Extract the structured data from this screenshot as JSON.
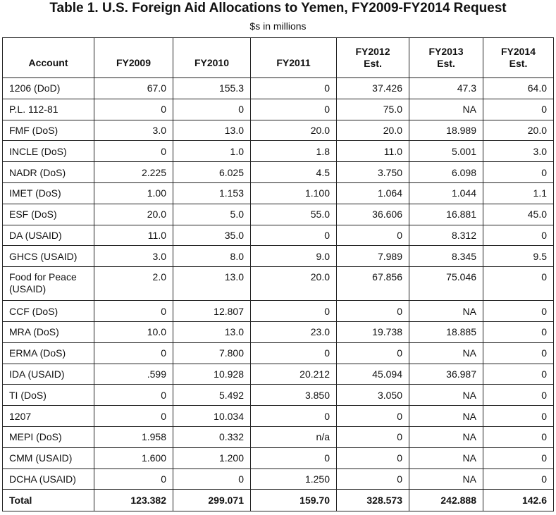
{
  "title": "Table 1. U.S. Foreign Aid Allocations to Yemen, FY2009-FY2014 Request",
  "subtitle": "$s in millions",
  "headers": [
    "Account",
    "FY2009",
    "FY2010",
    "FY2011",
    "FY2012\nEst.",
    "FY2013\nEst.",
    "FY2014\nEst."
  ],
  "rows": [
    [
      "1206 (DoD)",
      "67.0",
      "155.3",
      "0",
      "37.426",
      "47.3",
      "64.0"
    ],
    [
      "P.L. 112-81",
      "0",
      "0",
      "0",
      "75.0",
      "NA",
      "0"
    ],
    [
      "FMF (DoS)",
      "3.0",
      "13.0",
      "20.0",
      "20.0",
      "18.989",
      "20.0"
    ],
    [
      "INCLE (DoS)",
      "0",
      "1.0",
      "1.8",
      "11.0",
      "5.001",
      "3.0"
    ],
    [
      "NADR (DoS)",
      "2.225",
      "6.025",
      "4.5",
      "3.750",
      "6.098",
      "0"
    ],
    [
      "IMET (DoS)",
      "1.00",
      "1.153",
      "1.100",
      "1.064",
      "1.044",
      "1.1"
    ],
    [
      "ESF (DoS)",
      "20.0",
      "5.0",
      "55.0",
      "36.606",
      "16.881",
      "45.0"
    ],
    [
      "DA (USAID)",
      "11.0",
      "35.0",
      "0",
      "0",
      "8.312",
      "0"
    ],
    [
      "GHCS (USAID)",
      "3.0",
      "8.0",
      "9.0",
      "7.989",
      "8.345",
      "9.5"
    ],
    [
      "Food for Peace (USAID)",
      "2.0",
      "13.0",
      "20.0",
      "67.856",
      "75.046",
      "0"
    ],
    [
      "CCF (DoS)",
      "0",
      "12.807",
      "0",
      "0",
      "NA",
      "0"
    ],
    [
      "MRA (DoS)",
      "10.0",
      "13.0",
      "23.0",
      "19.738",
      "18.885",
      "0"
    ],
    [
      "ERMA (DoS)",
      "0",
      "7.800",
      "0",
      "0",
      "NA",
      "0"
    ],
    [
      "IDA (USAID)",
      ".599",
      "10.928",
      "20.212",
      "45.094",
      "36.987",
      "0"
    ],
    [
      "TI (DoS)",
      "0",
      "5.492",
      "3.850",
      "3.050",
      "NA",
      "0"
    ],
    [
      "1207",
      "0",
      "10.034",
      "0",
      "0",
      "NA",
      "0"
    ],
    [
      "MEPI (DoS)",
      "1.958",
      "0.332",
      "n/a",
      "0",
      "NA",
      "0"
    ],
    [
      "CMM (USAID)",
      "1.600",
      "1.200",
      "0",
      "0",
      "NA",
      "0"
    ],
    [
      "DCHA (USAID)",
      "0",
      "0",
      "1.250",
      "0",
      "NA",
      "0"
    ]
  ],
  "total": [
    "Total",
    "123.382",
    "299.071",
    "159.70",
    "328.573",
    "242.888",
    "142.6"
  ]
}
